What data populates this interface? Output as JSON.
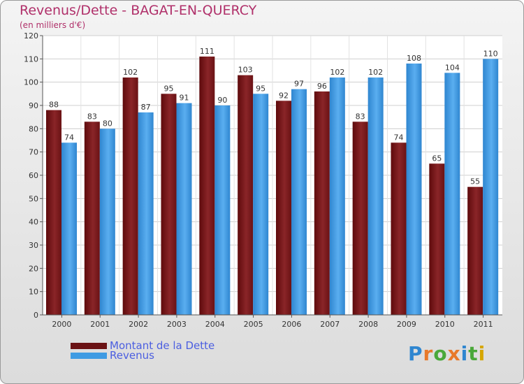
{
  "title": "Revenus/Dette - BAGAT-EN-QUERCY",
  "subtitle": "(en milliers d'€)",
  "logo_text": "Proxiti",
  "colors": {
    "title": "#b0306a",
    "debt": "#7a1416",
    "revenue": "#3f9be3",
    "legend_text": "#4b5ee0"
  },
  "chart_data": {
    "type": "bar",
    "title": "Revenus/Dette - BAGAT-EN-QUERCY",
    "subtitle": "(en milliers d'€)",
    "categories": [
      "2000",
      "2001",
      "2002",
      "2003",
      "2004",
      "2005",
      "2006",
      "2007",
      "2008",
      "2009",
      "2010",
      "2011"
    ],
    "series": [
      {
        "name": "Montant de la Dette",
        "values": [
          88,
          83,
          102,
          95,
          111,
          103,
          92,
          96,
          83,
          74,
          65,
          55
        ]
      },
      {
        "name": "Revenus",
        "values": [
          74,
          80,
          87,
          91,
          90,
          95,
          97,
          102,
          102,
          108,
          104,
          110
        ]
      }
    ],
    "ylim": [
      0,
      120
    ],
    "yticks": [
      0,
      10,
      20,
      30,
      40,
      50,
      60,
      70,
      80,
      90,
      100,
      110,
      120
    ],
    "grid": true,
    "legend_position": "bottom-left"
  }
}
